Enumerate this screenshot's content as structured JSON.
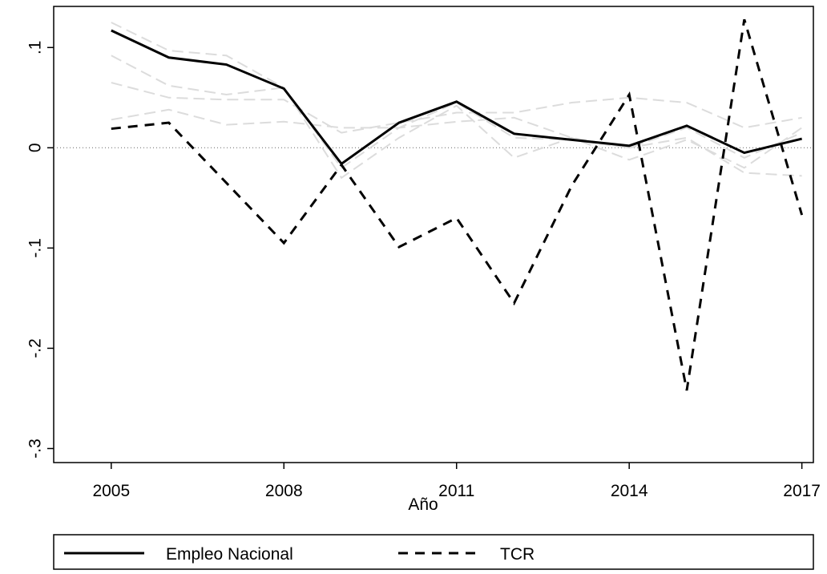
{
  "chart_data": {
    "type": "line",
    "x": [
      2005,
      2006,
      2007,
      2008,
      2009,
      2010,
      2011,
      2012,
      2013,
      2014,
      2015,
      2016,
      2017
    ],
    "series": [
      {
        "color": "#dcdcdc",
        "dash": "long",
        "values": [
          0.125,
          0.097,
          0.092,
          0.06,
          -0.02,
          0.02,
          0.045,
          0.01,
          0.008,
          0.0,
          0.02,
          -0.01,
          0.015
        ]
      },
      {
        "color": "#dcdcdc",
        "dash": "long",
        "values": [
          0.092,
          0.062,
          0.053,
          0.06,
          -0.03,
          0.01,
          0.042,
          -0.01,
          0.01,
          -0.012,
          0.008,
          -0.02,
          0.02
        ]
      },
      {
        "color": "#dcdcdc",
        "dash": "long",
        "values": [
          0.065,
          0.05,
          0.048,
          0.048,
          0.015,
          0.025,
          0.035,
          0.035,
          0.045,
          0.05,
          0.045,
          0.02,
          0.03
        ]
      },
      {
        "color": "#dcdcdc",
        "dash": "long",
        "values": [
          0.028,
          0.038,
          0.023,
          0.026,
          0.02,
          0.02,
          0.026,
          0.03,
          0.01,
          0.0,
          0.01,
          -0.025,
          -0.028
        ]
      },
      {
        "name": "Empleo Nacional",
        "color": "#000000",
        "dash": "solid",
        "values": [
          0.117,
          0.09,
          0.083,
          0.059,
          -0.016,
          0.025,
          0.046,
          0.014,
          0.008,
          0.002,
          0.022,
          -0.005,
          0.009
        ]
      },
      {
        "name": "TCR",
        "color": "#000000",
        "dash": "short",
        "values": [
          0.019,
          0.025,
          -0.035,
          -0.095,
          -0.017,
          -0.099,
          -0.07,
          -0.155,
          -0.038,
          0.053,
          -0.242,
          0.128,
          -0.067
        ]
      }
    ],
    "x_label": "Año",
    "xlim": [
      2004,
      2017.2
    ],
    "xticks": [
      2005,
      2008,
      2011,
      2014,
      2017
    ],
    "ylim": [
      -0.314,
      0.141
    ],
    "yticks": [
      {
        "value": 0.1,
        "label": ".1"
      },
      0,
      {
        "value": -0.1,
        "label": "-.1"
      },
      {
        "value": -0.2,
        "label": "-.2"
      },
      {
        "value": -0.3,
        "label": "-.3"
      }
    ],
    "zero_line": true,
    "legend": "bottom"
  }
}
